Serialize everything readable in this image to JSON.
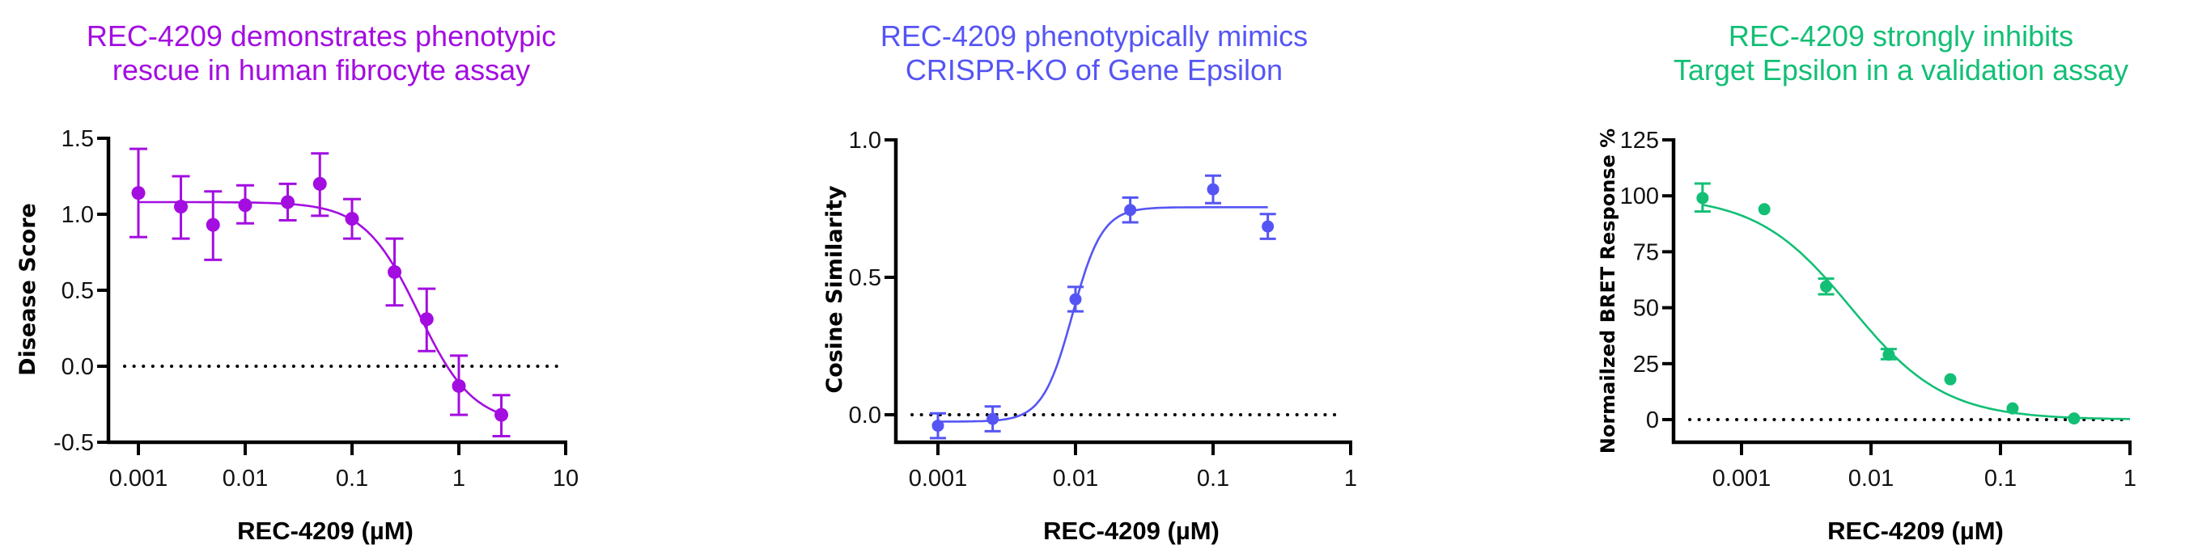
{
  "figure": {
    "panels": [
      {
        "title_line1": "REC-4209 demonstrates phenotypic",
        "title_line2": "rescue in human fibrocyte assay",
        "color": "#A30DE0",
        "ylabel": "Disease Score",
        "xlabel": "REC-4209 (µM)"
      },
      {
        "title_line1": "REC-4209 phenotypically mimics",
        "title_line2": "CRISPR-KO of Gene Epsilon",
        "color": "#5555F5",
        "ylabel": "Cosine Similarity",
        "xlabel": "REC-4209 (µM)"
      },
      {
        "title_line1": "REC-4209 strongly inhibits",
        "title_line2": "Target Epsilon in a validation assay",
        "color": "#12BF75",
        "ylabel": "Normailzed BRET Response %",
        "xlabel": "REC-4209 (µM)"
      }
    ]
  },
  "chart_data": [
    {
      "type": "scatter",
      "title": "REC-4209 demonstrates phenotypic rescue in human fibrocyte assay",
      "xlabel": "REC-4209 (µM)",
      "ylabel": "Disease Score",
      "xscale": "log",
      "xlim": [
        0.0005,
        10
      ],
      "ylim": [
        -0.5,
        1.5
      ],
      "xticks": [
        0.001,
        0.01,
        0.1,
        1,
        10
      ],
      "xtick_labels": [
        "0.001",
        "0.01",
        "0.1",
        "1",
        "10"
      ],
      "yticks": [
        -0.5,
        0.0,
        0.5,
        1.0,
        1.5
      ],
      "ytick_labels": [
        "-0.5",
        "0.0",
        "0.5",
        "1.0",
        "1.5"
      ],
      "grid": false,
      "legend": null,
      "reference_line": {
        "y": 0,
        "style": "dotted"
      },
      "color": "#A30DE0",
      "series": [
        {
          "name": "REC-4209",
          "x": [
            0.001,
            0.0025,
            0.005,
            0.01,
            0.025,
            0.05,
            0.1,
            0.25,
            0.5,
            1,
            2.5
          ],
          "y": [
            1.14,
            1.05,
            0.93,
            1.06,
            1.08,
            1.2,
            0.97,
            0.62,
            0.31,
            -0.13,
            -0.32
          ],
          "err_upper": [
            1.43,
            1.25,
            1.15,
            1.19,
            1.2,
            1.4,
            1.1,
            0.84,
            0.51,
            0.07,
            -0.19
          ],
          "err_lower": [
            0.85,
            0.84,
            0.7,
            0.94,
            0.96,
            0.99,
            0.84,
            0.4,
            0.1,
            -0.32,
            -0.46
          ]
        }
      ],
      "fit": {
        "model": "4PL",
        "top": 1.08,
        "bottom": -0.38,
        "ec50": 0.42,
        "hill": 1.7,
        "direction": "decreasing",
        "x_range": [
          0.001,
          2.5
        ]
      }
    },
    {
      "type": "scatter",
      "title": "REC-4209 phenotypically mimics CRISPR-KO of Gene Epsilon",
      "xlabel": "REC-4209 (µM)",
      "ylabel": "Cosine Similarity",
      "xscale": "log",
      "xlim": [
        0.0004,
        1
      ],
      "ylim": [
        -0.1,
        1.0
      ],
      "xticks": [
        0.001,
        0.01,
        0.1,
        1
      ],
      "xtick_labels": [
        "0.001",
        "0.01",
        "0.1",
        "1"
      ],
      "yticks": [
        0.0,
        0.5,
        1.0
      ],
      "ytick_labels": [
        "0.0",
        "0.5",
        "1.0"
      ],
      "grid": false,
      "legend": null,
      "reference_line": {
        "y": 0,
        "style": "dotted"
      },
      "color": "#5555F5",
      "series": [
        {
          "name": "REC-4209",
          "x": [
            0.001,
            0.0025,
            0.01,
            0.025,
            0.1,
            0.25
          ],
          "y": [
            -0.04,
            -0.015,
            0.42,
            0.745,
            0.82,
            0.685
          ],
          "err_upper": [
            0.005,
            0.03,
            0.465,
            0.79,
            0.87,
            0.73
          ],
          "err_lower": [
            -0.085,
            -0.06,
            0.376,
            0.7,
            0.77,
            0.64
          ]
        }
      ],
      "fit": {
        "model": "4PL",
        "top": 0.755,
        "bottom": -0.025,
        "ec50": 0.0095,
        "hill": 4,
        "direction": "increasing",
        "x_range": [
          0.001,
          0.25
        ]
      }
    },
    {
      "type": "scatter",
      "title": "REC-4209 strongly inhibits Target Epsilon in a validation assay",
      "xlabel": "REC-4209 (µM)",
      "ylabel": "Normailzed BRET Response %",
      "xscale": "log",
      "xlim": [
        0.0003,
        1
      ],
      "ylim": [
        -10,
        125
      ],
      "xticks": [
        0.001,
        0.01,
        0.1,
        1
      ],
      "xtick_labels": [
        "0.001",
        "0.01",
        "0.1",
        "1"
      ],
      "yticks": [
        0,
        25,
        50,
        75,
        100,
        125
      ],
      "ytick_labels": [
        "0",
        "25",
        "50",
        "75",
        "100",
        "125"
      ],
      "grid": false,
      "legend": null,
      "reference_line": {
        "y": 0,
        "style": "dotted"
      },
      "color": "#12BF75",
      "series": [
        {
          "name": "REC-4209",
          "x": [
            0.0005,
            0.0015,
            0.0045,
            0.0137,
            0.041,
            0.124,
            0.37
          ],
          "y": [
            99,
            94,
            59.5,
            29,
            18,
            5,
            0.5
          ],
          "err_upper": [
            105.5,
            94,
            63,
            31.5,
            18,
            5,
            0.5
          ],
          "err_lower": [
            93,
            94,
            56,
            27,
            18,
            5,
            0.5
          ]
        }
      ],
      "fit": {
        "model": "4PL",
        "top": 100,
        "bottom": 0,
        "ec50": 0.007,
        "hill": 1.2,
        "direction": "decreasing",
        "x_range": [
          0.0005,
          1
        ]
      }
    }
  ]
}
